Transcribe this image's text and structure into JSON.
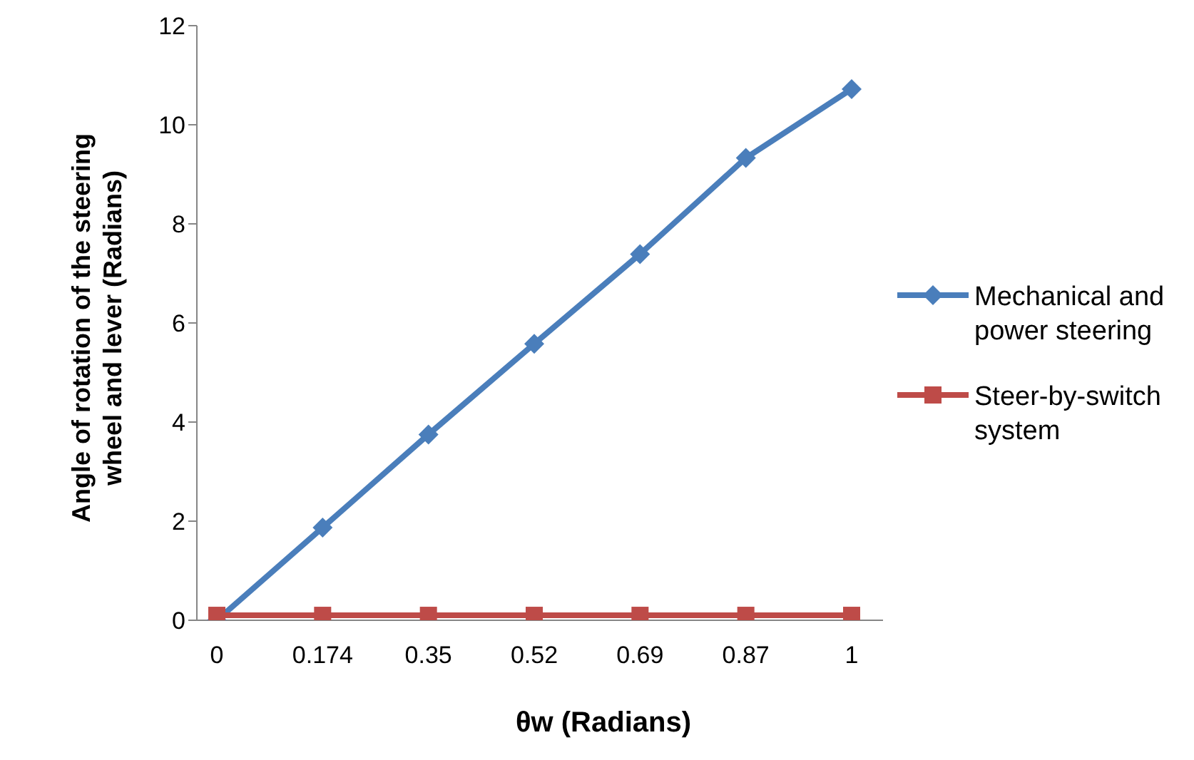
{
  "chart_data": {
    "type": "line",
    "xlabel": "θw (Radians)",
    "ylabel": "Angle of rotation of the steering wheel and lever (Radians)",
    "categories": [
      "0",
      "0.174",
      "0.35",
      "0.52",
      "0.69",
      "0.87",
      "1"
    ],
    "series": [
      {
        "name": "Mechanical and power steering",
        "color": "#4a7ebb",
        "marker": "diamond",
        "values": [
          0,
          1.87,
          3.75,
          5.58,
          7.39,
          9.33,
          10.72
        ]
      },
      {
        "name": "Steer-by-switch system",
        "color": "#be4b48",
        "marker": "square",
        "values": [
          0.1,
          0.1,
          0.1,
          0.1,
          0.1,
          0.1,
          0.1
        ]
      }
    ],
    "ylim": [
      0,
      12
    ],
    "yticks": [
      0,
      2,
      4,
      6,
      8,
      10,
      12
    ],
    "grid": false,
    "legend": "right",
    "line_style": "solid"
  }
}
